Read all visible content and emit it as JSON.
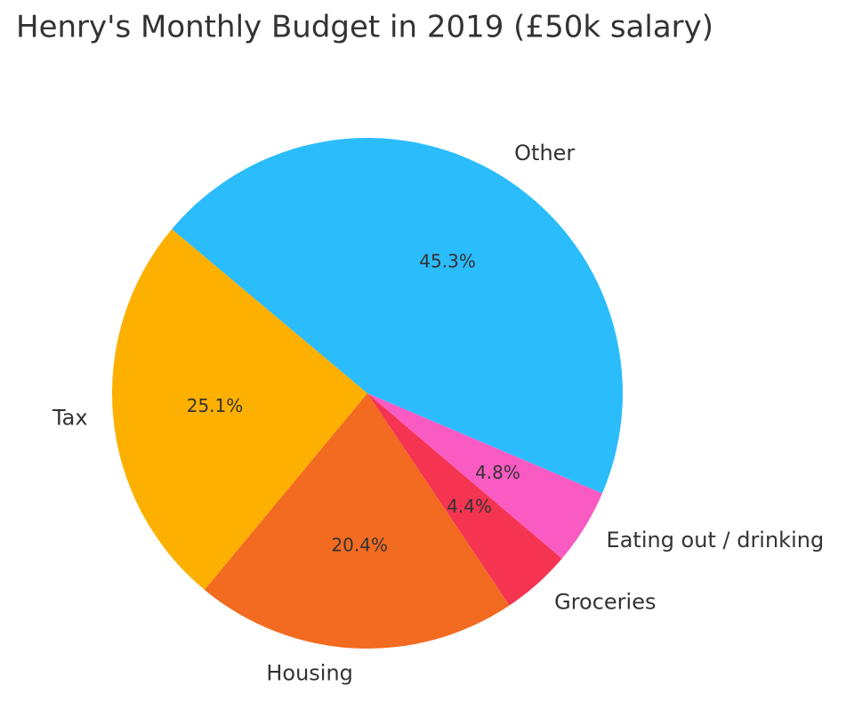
{
  "chart_data": {
    "type": "pie",
    "title": "Henry's Monthly Budget in 2019 (£50k salary)",
    "categories": [
      "Tax",
      "Housing",
      "Groceries",
      "Eating out / drinking",
      "Other"
    ],
    "values": [
      25.1,
      20.4,
      4.4,
      4.8,
      45.3
    ],
    "value_labels": [
      "25.1%",
      "20.4%",
      "4.4%",
      "4.8%",
      "45.3%"
    ],
    "colors": [
      "#fdb000",
      "#f26b21",
      "#f53452",
      "#f95bc3",
      "#2bbcfc"
    ]
  }
}
